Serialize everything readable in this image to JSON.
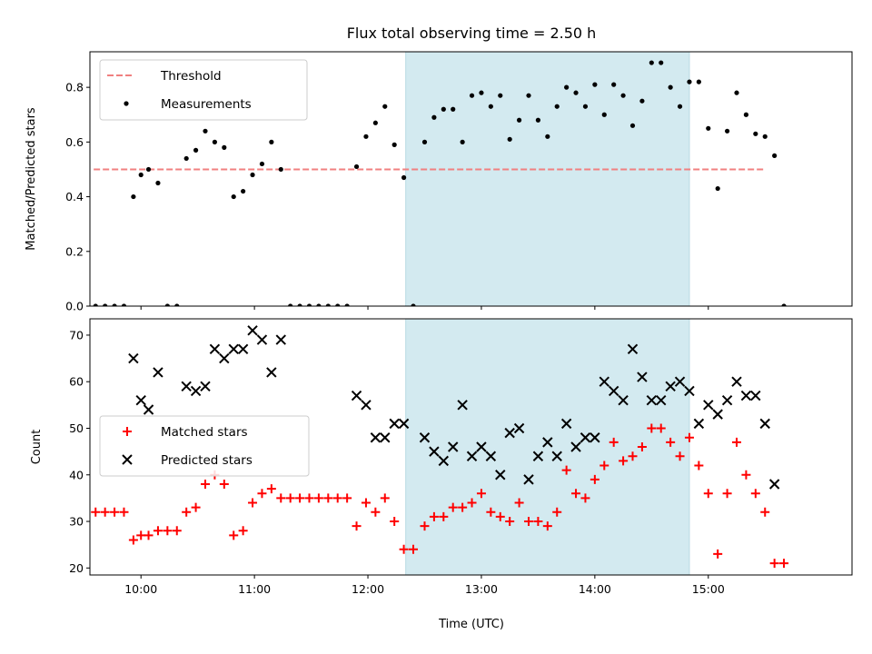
{
  "title": "Flux total observing time = 2.50 h",
  "xlabel": "Time (UTC)",
  "x_tick_labels": [
    "10:00",
    "11:00",
    "12:00",
    "13:00",
    "14:00",
    "15:00"
  ],
  "colors": {
    "threshold": "#f08080",
    "measurements": "#000000",
    "matched": "#ff0000",
    "predicted": "#000000",
    "highlight": "#d3eaf0"
  },
  "chart_data": [
    {
      "type": "scatter",
      "ylabel": "Matched/Predicted stars",
      "xlim": [
        "09:33",
        "16:16"
      ],
      "ylim": [
        0,
        0.93
      ],
      "y_ticks": [
        0.0,
        0.2,
        0.4,
        0.6,
        0.8
      ],
      "y_tick_labels": [
        "0.0",
        "0.2",
        "0.4",
        "0.6",
        "0.8"
      ],
      "highlight_range": [
        "12:20",
        "14:50"
      ],
      "legend": "top-left",
      "threshold": {
        "name": "Threshold",
        "value": 0.5,
        "x_range": [
          "09:35",
          "15:30"
        ],
        "style": "dashed"
      },
      "series": [
        {
          "name": "Measurements",
          "marker": "dot",
          "points": [
            [
              "09:36",
              0
            ],
            [
              "09:41",
              0
            ],
            [
              "09:46",
              0
            ],
            [
              "09:51",
              0
            ],
            [
              "09:56",
              0.4
            ],
            [
              "10:00",
              0.48
            ],
            [
              "10:04",
              0.5
            ],
            [
              "10:09",
              0.45
            ],
            [
              "10:14",
              0
            ],
            [
              "10:19",
              0
            ],
            [
              "10:24",
              0.54
            ],
            [
              "10:29",
              0.57
            ],
            [
              "10:34",
              0.64
            ],
            [
              "10:39",
              0.6
            ],
            [
              "10:44",
              0.58
            ],
            [
              "10:49",
              0.4
            ],
            [
              "10:54",
              0.42
            ],
            [
              "10:59",
              0.48
            ],
            [
              "11:04",
              0.52
            ],
            [
              "11:09",
              0.6
            ],
            [
              "11:14",
              0.5
            ],
            [
              "11:19",
              0
            ],
            [
              "11:24",
              0
            ],
            [
              "11:29",
              0
            ],
            [
              "11:34",
              0
            ],
            [
              "11:39",
              0
            ],
            [
              "11:44",
              0
            ],
            [
              "11:49",
              0
            ],
            [
              "11:54",
              0.51
            ],
            [
              "11:59",
              0.62
            ],
            [
              "12:04",
              0.67
            ],
            [
              "12:09",
              0.73
            ],
            [
              "12:14",
              0.59
            ],
            [
              "12:19",
              0.47
            ],
            [
              "12:24",
              0
            ],
            [
              "12:30",
              0.6
            ],
            [
              "12:35",
              0.69
            ],
            [
              "12:40",
              0.72
            ],
            [
              "12:45",
              0.72
            ],
            [
              "12:50",
              0.6
            ],
            [
              "12:55",
              0.77
            ],
            [
              "13:00",
              0.78
            ],
            [
              "13:05",
              0.73
            ],
            [
              "13:10",
              0.77
            ],
            [
              "13:15",
              0.61
            ],
            [
              "13:20",
              0.68
            ],
            [
              "13:25",
              0.77
            ],
            [
              "13:30",
              0.68
            ],
            [
              "13:35",
              0.62
            ],
            [
              "13:40",
              0.73
            ],
            [
              "13:45",
              0.8
            ],
            [
              "13:50",
              0.78
            ],
            [
              "13:55",
              0.73
            ],
            [
              "14:00",
              0.81
            ],
            [
              "14:05",
              0.7
            ],
            [
              "14:10",
              0.81
            ],
            [
              "14:15",
              0.77
            ],
            [
              "14:20",
              0.66
            ],
            [
              "14:25",
              0.75
            ],
            [
              "14:30",
              0.89
            ],
            [
              "14:35",
              0.89
            ],
            [
              "14:40",
              0.8
            ],
            [
              "14:45",
              0.73
            ],
            [
              "14:50",
              0.82
            ],
            [
              "14:55",
              0.82
            ],
            [
              "15:00",
              0.65
            ],
            [
              "15:05",
              0.43
            ],
            [
              "15:10",
              0.64
            ],
            [
              "15:15",
              0.78
            ],
            [
              "15:20",
              0.7
            ],
            [
              "15:25",
              0.63
            ],
            [
              "15:30",
              0.62
            ],
            [
              "15:35",
              0.55
            ],
            [
              "15:40",
              0
            ]
          ]
        }
      ]
    },
    {
      "type": "scatter",
      "ylabel": "Count",
      "xlim": [
        "09:33",
        "16:16"
      ],
      "ylim": [
        18.5,
        73.5
      ],
      "y_ticks": [
        20,
        30,
        40,
        50,
        60,
        70
      ],
      "y_tick_labels": [
        "20",
        "30",
        "40",
        "50",
        "60",
        "70"
      ],
      "highlight_range": [
        "12:20",
        "14:50"
      ],
      "legend": "center-left",
      "series": [
        {
          "name": "Matched stars",
          "marker": "plus",
          "points": [
            [
              "09:36",
              32
            ],
            [
              "09:41",
              32
            ],
            [
              "09:46",
              32
            ],
            [
              "09:51",
              32
            ],
            [
              "09:56",
              26
            ],
            [
              "10:00",
              27
            ],
            [
              "10:04",
              27
            ],
            [
              "10:09",
              28
            ],
            [
              "10:14",
              28
            ],
            [
              "10:19",
              28
            ],
            [
              "10:24",
              32
            ],
            [
              "10:29",
              33
            ],
            [
              "10:34",
              38
            ],
            [
              "10:39",
              40
            ],
            [
              "10:44",
              38
            ],
            [
              "10:49",
              27
            ],
            [
              "10:54",
              28
            ],
            [
              "10:59",
              34
            ],
            [
              "11:04",
              36
            ],
            [
              "11:09",
              37
            ],
            [
              "11:14",
              35
            ],
            [
              "11:19",
              35
            ],
            [
              "11:24",
              35
            ],
            [
              "11:29",
              35
            ],
            [
              "11:34",
              35
            ],
            [
              "11:39",
              35
            ],
            [
              "11:44",
              35
            ],
            [
              "11:49",
              35
            ],
            [
              "11:54",
              29
            ],
            [
              "11:59",
              34
            ],
            [
              "12:04",
              32
            ],
            [
              "12:09",
              35
            ],
            [
              "12:14",
              30
            ],
            [
              "12:19",
              24
            ],
            [
              "12:24",
              24
            ],
            [
              "12:30",
              29
            ],
            [
              "12:35",
              31
            ],
            [
              "12:40",
              31
            ],
            [
              "12:45",
              33
            ],
            [
              "12:50",
              33
            ],
            [
              "12:55",
              34
            ],
            [
              "13:00",
              36
            ],
            [
              "13:05",
              32
            ],
            [
              "13:10",
              31
            ],
            [
              "13:15",
              30
            ],
            [
              "13:20",
              34
            ],
            [
              "13:25",
              30
            ],
            [
              "13:30",
              30
            ],
            [
              "13:35",
              29
            ],
            [
              "13:40",
              32
            ],
            [
              "13:45",
              41
            ],
            [
              "13:50",
              36
            ],
            [
              "13:55",
              35
            ],
            [
              "14:00",
              39
            ],
            [
              "14:05",
              42
            ],
            [
              "14:10",
              47
            ],
            [
              "14:15",
              43
            ],
            [
              "14:20",
              44
            ],
            [
              "14:25",
              46
            ],
            [
              "14:30",
              50
            ],
            [
              "14:35",
              50
            ],
            [
              "14:40",
              47
            ],
            [
              "14:45",
              44
            ],
            [
              "14:50",
              48
            ],
            [
              "14:55",
              42
            ],
            [
              "15:00",
              36
            ],
            [
              "15:05",
              23
            ],
            [
              "15:10",
              36
            ],
            [
              "15:15",
              47
            ],
            [
              "15:20",
              40
            ],
            [
              "15:25",
              36
            ],
            [
              "15:30",
              32
            ],
            [
              "15:35",
              21
            ],
            [
              "15:40",
              21
            ]
          ]
        },
        {
          "name": "Predicted stars",
          "marker": "x",
          "points": [
            [
              "09:56",
              65
            ],
            [
              "10:00",
              56
            ],
            [
              "10:04",
              54
            ],
            [
              "10:09",
              62
            ],
            [
              "10:24",
              59
            ],
            [
              "10:29",
              58
            ],
            [
              "10:34",
              59
            ],
            [
              "10:39",
              67
            ],
            [
              "10:44",
              65
            ],
            [
              "10:49",
              67
            ],
            [
              "10:54",
              67
            ],
            [
              "10:59",
              71
            ],
            [
              "11:04",
              69
            ],
            [
              "11:09",
              62
            ],
            [
              "11:14",
              69
            ],
            [
              "11:54",
              57
            ],
            [
              "11:59",
              55
            ],
            [
              "12:04",
              48
            ],
            [
              "12:09",
              48
            ],
            [
              "12:14",
              51
            ],
            [
              "12:19",
              51
            ],
            [
              "12:30",
              48
            ],
            [
              "12:35",
              45
            ],
            [
              "12:40",
              43
            ],
            [
              "12:45",
              46
            ],
            [
              "12:50",
              55
            ],
            [
              "12:55",
              44
            ],
            [
              "13:00",
              46
            ],
            [
              "13:05",
              44
            ],
            [
              "13:10",
              40
            ],
            [
              "13:15",
              49
            ],
            [
              "13:20",
              50
            ],
            [
              "13:25",
              39
            ],
            [
              "13:30",
              44
            ],
            [
              "13:35",
              47
            ],
            [
              "13:40",
              44
            ],
            [
              "13:45",
              51
            ],
            [
              "13:50",
              46
            ],
            [
              "13:55",
              48
            ],
            [
              "14:00",
              48
            ],
            [
              "14:05",
              60
            ],
            [
              "14:10",
              58
            ],
            [
              "14:15",
              56
            ],
            [
              "14:20",
              67
            ],
            [
              "14:25",
              61
            ],
            [
              "14:30",
              56
            ],
            [
              "14:35",
              56
            ],
            [
              "14:40",
              59
            ],
            [
              "14:45",
              60
            ],
            [
              "14:50",
              58
            ],
            [
              "14:55",
              51
            ],
            [
              "15:00",
              55
            ],
            [
              "15:05",
              53
            ],
            [
              "15:10",
              56
            ],
            [
              "15:15",
              60
            ],
            [
              "15:20",
              57
            ],
            [
              "15:25",
              57
            ],
            [
              "15:30",
              51
            ],
            [
              "15:35",
              38
            ]
          ]
        }
      ]
    }
  ]
}
